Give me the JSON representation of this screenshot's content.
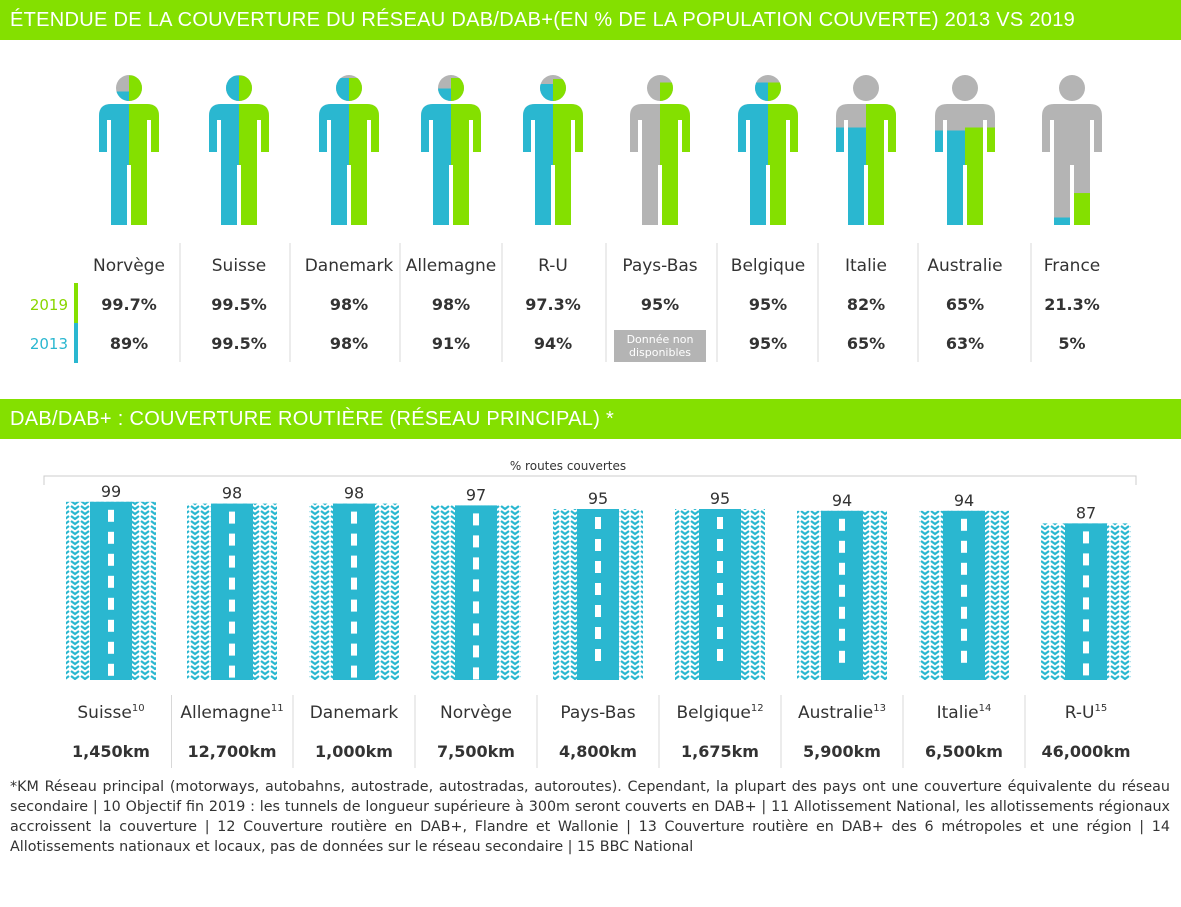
{
  "colors": {
    "green": "#84e000",
    "blue": "#2ab7d0",
    "grey": "#b4b4b4"
  },
  "section1": {
    "title": "ÉTENDUE DE LA COUVERTURE DU RÉSEAU DAB/DAB+(EN % DE LA POPULATION COUVERTE) 2013 VS 2019"
  },
  "section2": {
    "title": "DAB/DAB+ : COUVERTURE ROUTIÈRE (RÉSEAU PRINCIPAL) *"
  },
  "chart_data": [
    {
      "type": "table",
      "series": [
        {
          "name": "2019",
          "values": [
            99.7,
            99.5,
            98,
            98,
            97.3,
            95,
            95,
            82,
            65,
            21.3
          ]
        },
        {
          "name": "2013",
          "values": [
            89,
            99.5,
            98,
            91,
            94,
            null,
            95,
            65,
            63,
            5
          ]
        }
      ],
      "categories": [
        "Norvège",
        "Suisse",
        "Danemark",
        "Allemagne",
        "R-U",
        "Pays-Bas",
        "Belgique",
        "Italie",
        "Australie",
        "France"
      ],
      "labels_2019": [
        "99.7%",
        "99.5%",
        "98%",
        "98%",
        "97.3%",
        "95%",
        "95%",
        "82%",
        "65%",
        "21.3%"
      ],
      "labels_2013": [
        "89%",
        "99.5%",
        "98%",
        "91%",
        "94%",
        "",
        "95%",
        "65%",
        "63%",
        "5%"
      ],
      "na_label_lines": [
        "Donnée non",
        "disponibles"
      ]
    },
    {
      "type": "bar",
      "ylabel": "% routes couvertes",
      "categories": [
        "Suisse",
        "Allemagne",
        "Danemark",
        "Norvège",
        "Pays-Bas",
        "Belgique",
        "Australie",
        "Italie",
        "R-U"
      ],
      "footnote_marks": [
        "10",
        "11",
        "",
        "",
        "",
        "12",
        "13",
        "14",
        "15"
      ],
      "values": [
        99,
        98,
        98,
        97,
        95,
        95,
        94,
        94,
        87
      ],
      "km": [
        "1,450km",
        "12,700km",
        "1,000km",
        "7,500km",
        "4,800km",
        "1,675km",
        "5,900km",
        "6,500km",
        "46,000km"
      ]
    }
  ],
  "footnote": "*KM Réseau principal (motorways, autobahns, autostrade, autostradas, autoroutes). Cependant, la plupart des pays ont une couverture équivalente du réseau secondaire    | 10 Objectif fin 2019 : les tunnels de longueur supérieure à 300m seront couverts en DAB+  |  11 Allotissement National, les allotissements régionaux accroissent la couverture | 12 Couverture routière en DAB+, Flandre et Wallonie |  13 Couverture routière en DAB+ des 6 métropoles et une région |  14 Allotissements nationaux et locaux, pas de données sur le réseau secondaire |  15 BBC National"
}
